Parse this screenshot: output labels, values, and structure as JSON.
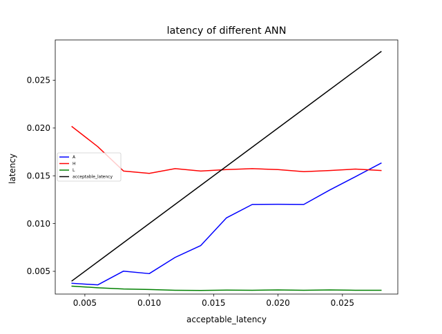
{
  "chart_data": {
    "type": "line",
    "title": "latency of different ANN",
    "xlabel": "acceptable_latency",
    "ylabel": "latency",
    "xlim": [
      0.0027,
      0.0293
    ],
    "ylim": [
      0.00262,
      0.02922
    ],
    "grid": false,
    "legend_position": "center-left",
    "x_ticks": [
      0.005,
      0.01,
      0.015,
      0.02,
      0.025
    ],
    "x_tick_labels": [
      "0.005",
      "0.010",
      "0.015",
      "0.020",
      "0.025"
    ],
    "y_ticks": [
      0.005,
      0.01,
      0.015,
      0.02,
      0.025
    ],
    "y_tick_labels": [
      "0.005",
      "0.010",
      "0.015",
      "0.020",
      "0.025"
    ],
    "x": [
      0.004,
      0.006,
      0.008,
      0.01,
      0.012,
      0.014,
      0.016,
      0.018,
      0.02,
      0.022,
      0.024,
      0.026,
      0.028
    ],
    "series": [
      {
        "name": "A",
        "color": "#0000ff",
        "values": [
          0.00375,
          0.00358,
          0.00502,
          0.00476,
          0.00645,
          0.0077,
          0.0106,
          0.012,
          0.01202,
          0.012,
          0.0135,
          0.0149,
          0.01632
        ]
      },
      {
        "name": "H",
        "color": "#ff0000",
        "values": [
          0.02015,
          0.01805,
          0.0155,
          0.01525,
          0.01575,
          0.0155,
          0.01565,
          0.01575,
          0.01565,
          0.01543,
          0.01555,
          0.0157,
          0.01555
        ]
      },
      {
        "name": "L",
        "color": "#008000",
        "values": [
          0.00345,
          0.00328,
          0.00315,
          0.0031,
          0.00302,
          0.003,
          0.00303,
          0.00302,
          0.00305,
          0.00302,
          0.00305,
          0.00302,
          0.00302
        ]
      },
      {
        "name": "acceptable_latency",
        "color": "#000000",
        "values": [
          0.004,
          0.006,
          0.008,
          0.01,
          0.012,
          0.014,
          0.016,
          0.018,
          0.02,
          0.022,
          0.024,
          0.026,
          0.028
        ]
      }
    ]
  }
}
